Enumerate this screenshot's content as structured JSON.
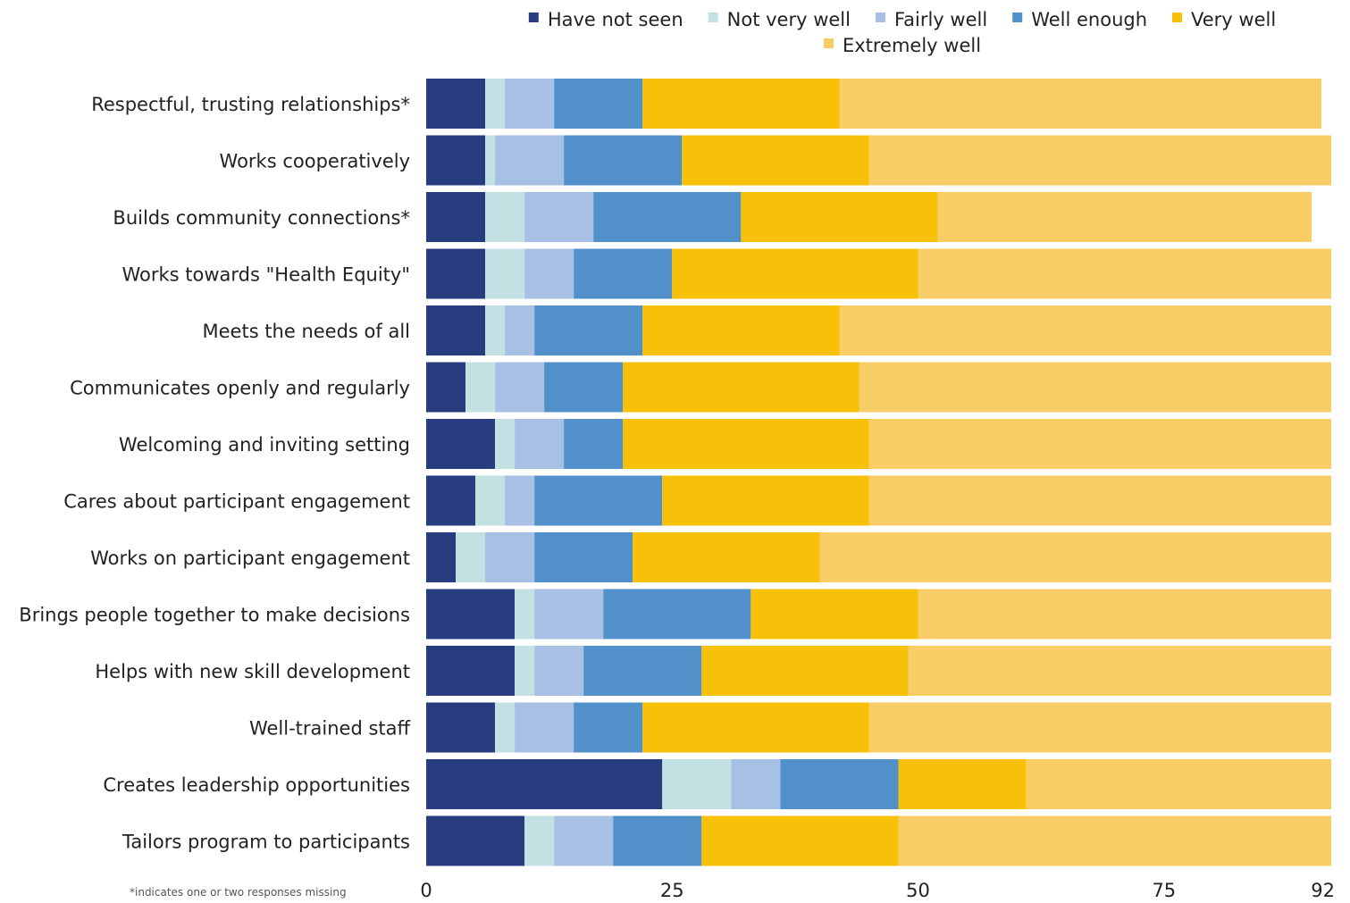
{
  "chart_data": {
    "type": "bar",
    "orientation": "horizontal",
    "stacked": true,
    "categories": [
      "Respectful, trusting relationships*",
      "Works cooperatively",
      "Builds community connections*",
      "Works towards \"Health Equity\"",
      "Meets the needs of all",
      "Communicates openly and regularly",
      "Welcoming and inviting setting",
      "Cares about participant engagement",
      "Works on participant engagement",
      "Brings people together to make decisions",
      "Helps with new skill development",
      "Well-trained staff",
      "Creates leadership opportunities",
      "Tailors program to participants"
    ],
    "series": [
      {
        "name": "Have not seen",
        "color": "#283c80",
        "values": [
          6,
          6,
          6,
          6,
          6,
          4,
          7,
          5,
          3,
          9,
          9,
          7,
          24,
          10
        ]
      },
      {
        "name": "Not very well",
        "color": "#c3e0e2",
        "values": [
          2,
          1,
          4,
          4,
          2,
          3,
          2,
          3,
          3,
          2,
          2,
          2,
          7,
          3
        ]
      },
      {
        "name": "Fairly well",
        "color": "#a7c0e4",
        "values": [
          5,
          7,
          7,
          5,
          3,
          5,
          5,
          3,
          5,
          7,
          5,
          6,
          5,
          6
        ]
      },
      {
        "name": "Well enough",
        "color": "#5190c9",
        "values": [
          9,
          12,
          15,
          10,
          11,
          8,
          6,
          13,
          10,
          15,
          12,
          7,
          12,
          9
        ]
      },
      {
        "name": "Very well",
        "color": "#f7c009",
        "values": [
          20,
          19,
          20,
          25,
          20,
          24,
          25,
          21,
          19,
          17,
          21,
          23,
          13,
          20
        ]
      },
      {
        "name": "Extremely well",
        "color": "#f9cd65",
        "values": [
          49,
          47,
          38,
          42,
          50,
          48,
          47,
          47,
          52,
          42,
          43,
          47,
          31,
          44
        ]
      }
    ],
    "xlim": [
      0,
      92
    ],
    "xticks": [
      0,
      25,
      50,
      75,
      92
    ],
    "legend_position": "top",
    "grid": false,
    "footnote": "*indicates one or two responses missing"
  }
}
